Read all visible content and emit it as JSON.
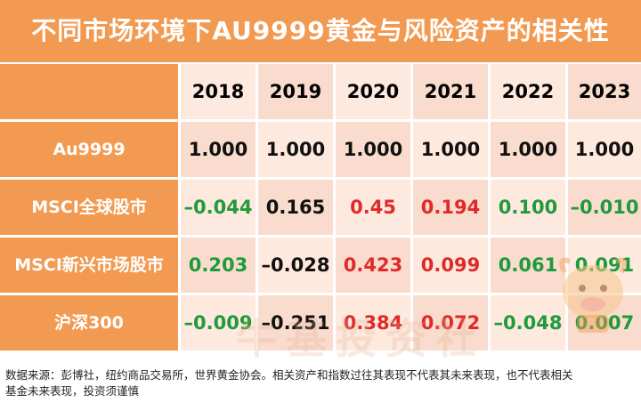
{
  "title": "不同市场环境下AU9999黄金与风险资产的相关性",
  "years": [
    "2018",
    "2019",
    "2020",
    "2021",
    "2022",
    "2023"
  ],
  "rows": [
    {
      "label": "Au9999",
      "values": [
        "1.000",
        "1.000",
        "1.000",
        "1.000",
        "1.000",
        "1.000"
      ],
      "tones": [
        "neu",
        "neu",
        "neu",
        "neu",
        "neu",
        "neu"
      ]
    },
    {
      "label": "MSCI全球股市",
      "values": [
        "–0.044",
        "0.165",
        "0.45",
        "0.194",
        "0.100",
        "–0.010"
      ],
      "tones": [
        "neg",
        "neu",
        "pos",
        "pos",
        "neg",
        "neg"
      ]
    },
    {
      "label": "MSCI新兴市场股市",
      "values": [
        "0.203",
        "–0.028",
        "0.423",
        "0.099",
        "0.061",
        "0.091"
      ],
      "tones": [
        "neg",
        "neu",
        "pos",
        "pos",
        "neg",
        "neg"
      ]
    },
    {
      "label": "沪深300",
      "values": [
        "–0.009",
        "–0.251",
        "0.384",
        "0.072",
        "–0.048",
        "0.007"
      ],
      "tones": [
        "neg",
        "neu",
        "pos",
        "pos",
        "neg",
        "neg"
      ]
    }
  ],
  "footer": {
    "line1": "数据来源：彭博社，纽约商品交易所，世界黄金协会。相关资产和指数过往其表现不代表其未来表现，也不代表相关",
    "line2": "基金未来表现，投资须谨慎"
  },
  "watermark": "牛基投资社",
  "colors": {
    "header": "#f29a52",
    "positive": "#e02a2a",
    "negative": "#1f9a3c",
    "neutral": "#111111",
    "even_row": "#fde9de",
    "odd_row": "#f9dccd"
  }
}
